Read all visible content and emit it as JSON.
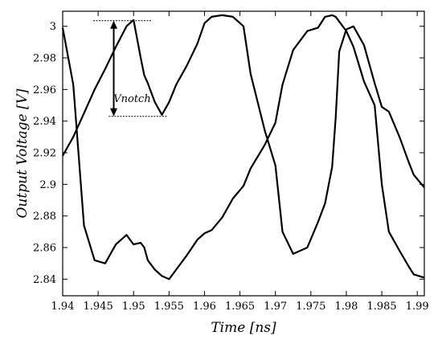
{
  "chart_data": {
    "type": "line",
    "title": "",
    "xlabel": "Time [ns]",
    "ylabel": "Output Voltage [V]",
    "xlim": [
      1.94,
      1.991
    ],
    "ylim": [
      2.8295,
      3.0095
    ],
    "x_ticks": [
      1.94,
      1.945,
      1.95,
      1.955,
      1.96,
      1.965,
      1.97,
      1.975,
      1.98,
      1.985,
      1.99
    ],
    "x_tick_labels": [
      "1.94",
      "1.945",
      "1.95",
      "1.955",
      "1.96",
      "1.965",
      "1.97",
      "1.975",
      "1.98",
      "1.985",
      "1.99"
    ],
    "y_ticks": [
      2.84,
      2.86,
      2.88,
      2.9,
      2.92,
      2.94,
      2.96,
      2.98,
      3.0
    ],
    "y_tick_labels": [
      "2.84",
      "2.86",
      "2.88",
      "2.9",
      "2.92",
      "2.94",
      "2.96",
      "2.98",
      "3"
    ],
    "grid": false,
    "series": [
      {
        "color": "#000000",
        "x": [
          1.94,
          1.9415,
          1.943,
          1.9445,
          1.946,
          1.9475,
          1.949,
          1.95,
          1.951,
          1.9515,
          1.952,
          1.953,
          1.954,
          1.955,
          1.956,
          1.9575,
          1.959,
          1.96,
          1.961,
          1.9625,
          1.964,
          1.9655,
          1.9665,
          1.9685,
          1.97,
          1.971,
          1.9725,
          1.9745,
          1.976,
          1.977,
          1.978,
          1.9785,
          1.979,
          1.98,
          1.981,
          1.9825,
          1.984,
          1.985,
          1.986,
          1.9875,
          1.9888,
          1.9895,
          1.991
        ],
        "y": [
          2.918,
          2.93,
          2.945,
          2.96,
          2.973,
          2.987,
          3.0,
          3.004,
          2.98,
          2.969,
          2.964,
          2.952,
          2.944,
          2.952,
          2.963,
          2.975,
          2.989,
          3.002,
          3.006,
          3.007,
          3.006,
          3.0,
          2.97,
          2.934,
          2.912,
          2.87,
          2.856,
          2.86,
          2.876,
          2.888,
          2.911,
          2.942,
          2.984,
          2.998,
          3.0,
          2.988,
          2.964,
          2.949,
          2.946,
          2.93,
          2.914,
          2.906,
          2.898
        ]
      },
      {
        "color": "#000000",
        "x": [
          1.94,
          1.9415,
          1.943,
          1.9445,
          1.946,
          1.9475,
          1.949,
          1.95,
          1.951,
          1.9515,
          1.952,
          1.953,
          1.954,
          1.955,
          1.956,
          1.9575,
          1.959,
          1.96,
          1.961,
          1.9625,
          1.964,
          1.9655,
          1.9665,
          1.9685,
          1.97,
          1.971,
          1.9725,
          1.9745,
          1.976,
          1.977,
          1.978,
          1.9785,
          1.979,
          1.98,
          1.981,
          1.9825,
          1.984,
          1.985,
          1.986,
          1.9875,
          1.9888,
          1.9895,
          1.991
        ],
        "y": [
          2.999,
          2.963,
          2.874,
          2.852,
          2.85,
          2.862,
          2.868,
          2.862,
          2.863,
          2.86,
          2.852,
          2.846,
          2.842,
          2.84,
          2.846,
          2.855,
          2.865,
          2.869,
          2.871,
          2.879,
          2.891,
          2.899,
          2.91,
          2.925,
          2.939,
          2.963,
          2.985,
          2.997,
          2.999,
          3.006,
          3.007,
          3.006,
          3.003,
          2.997,
          2.987,
          2.965,
          2.95,
          2.9,
          2.87,
          2.858,
          2.848,
          2.843,
          2.841
        ]
      }
    ],
    "annotations": [
      {
        "text": "Vnotch",
        "x": 1.9498,
        "y": 2.952
      }
    ],
    "notch_marker": {
      "x": 1.9472,
      "y_top": 3.0035,
      "y_bottom": 2.943
    }
  }
}
